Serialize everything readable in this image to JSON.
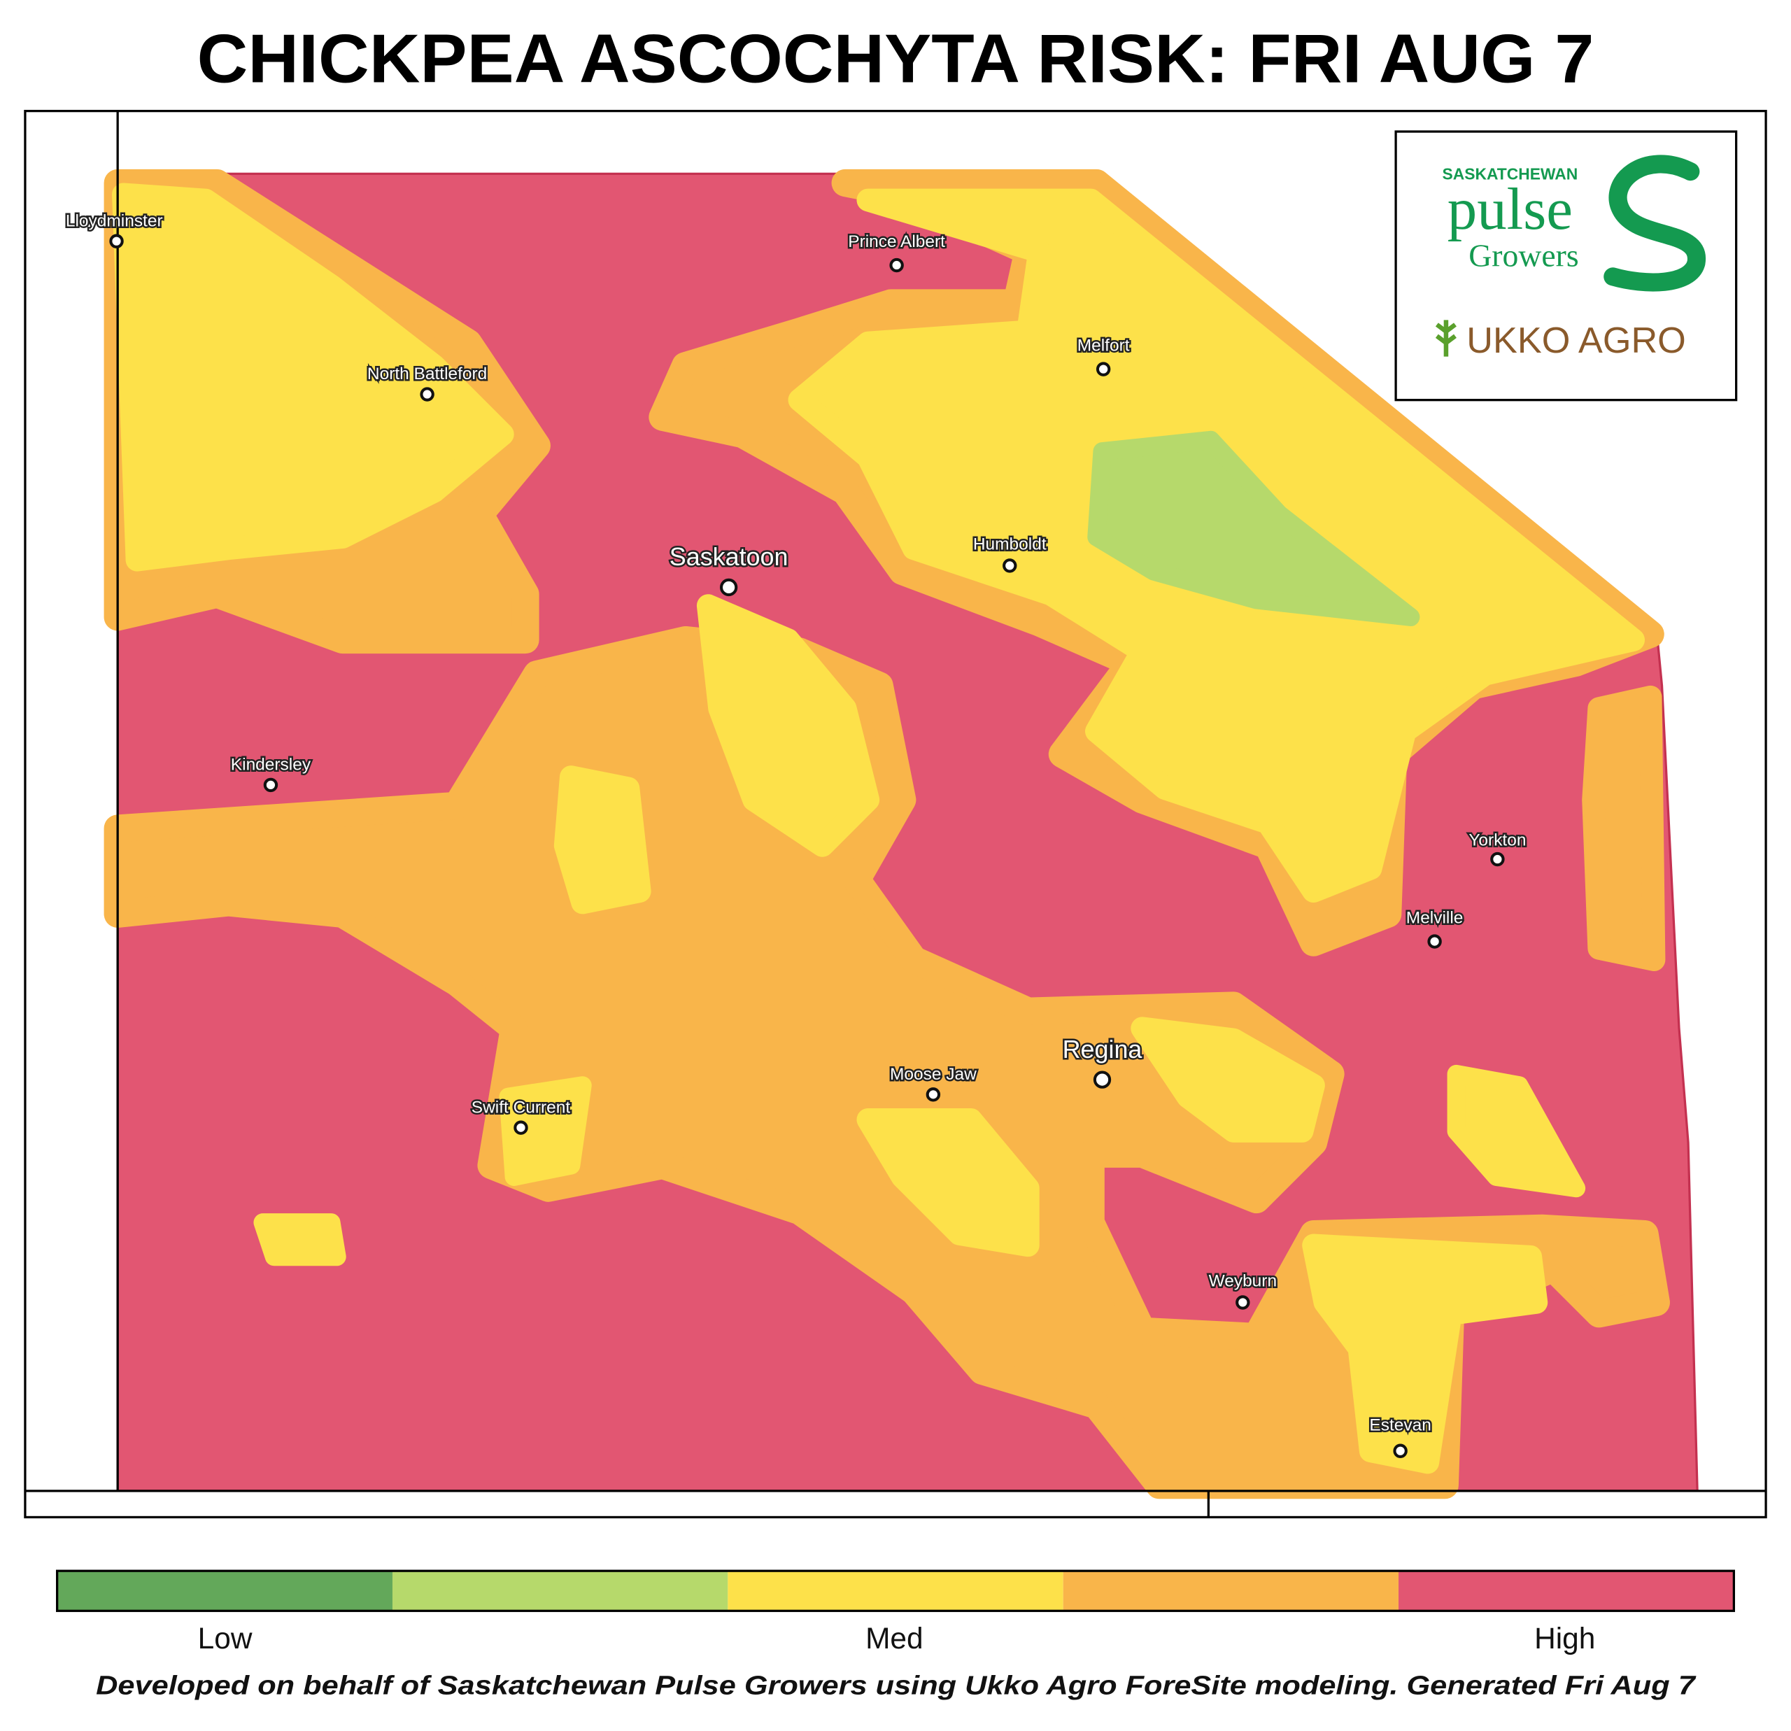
{
  "title": "CHICKPEA ASCOCHYTA RISK: FRI AUG 7",
  "logo": {
    "org_line1": "SASKATCHEWAN",
    "org_line2": "pulse",
    "org_line3": "Growers",
    "partner": "UKKO AGRO"
  },
  "cities": [
    "Lloydminster",
    "Prince Albert",
    "Melfort",
    "North Battleford",
    "Saskatoon",
    "Humboldt",
    "Kindersley",
    "Yorkton",
    "Melville",
    "Regina",
    "Moose Jaw",
    "Swift Current",
    "Weyburn",
    "Estevan"
  ],
  "legend": {
    "colors": [
      "#63a85a",
      "#b6d96b",
      "#fde14a",
      "#f9b54a",
      "#e25672"
    ],
    "labels": [
      "Low",
      "Med",
      "High"
    ]
  },
  "footer": "Developed on behalf of Saskatchewan Pulse Growers using Ukko Agro ForeSite modeling. Generated Fri Aug 7"
}
